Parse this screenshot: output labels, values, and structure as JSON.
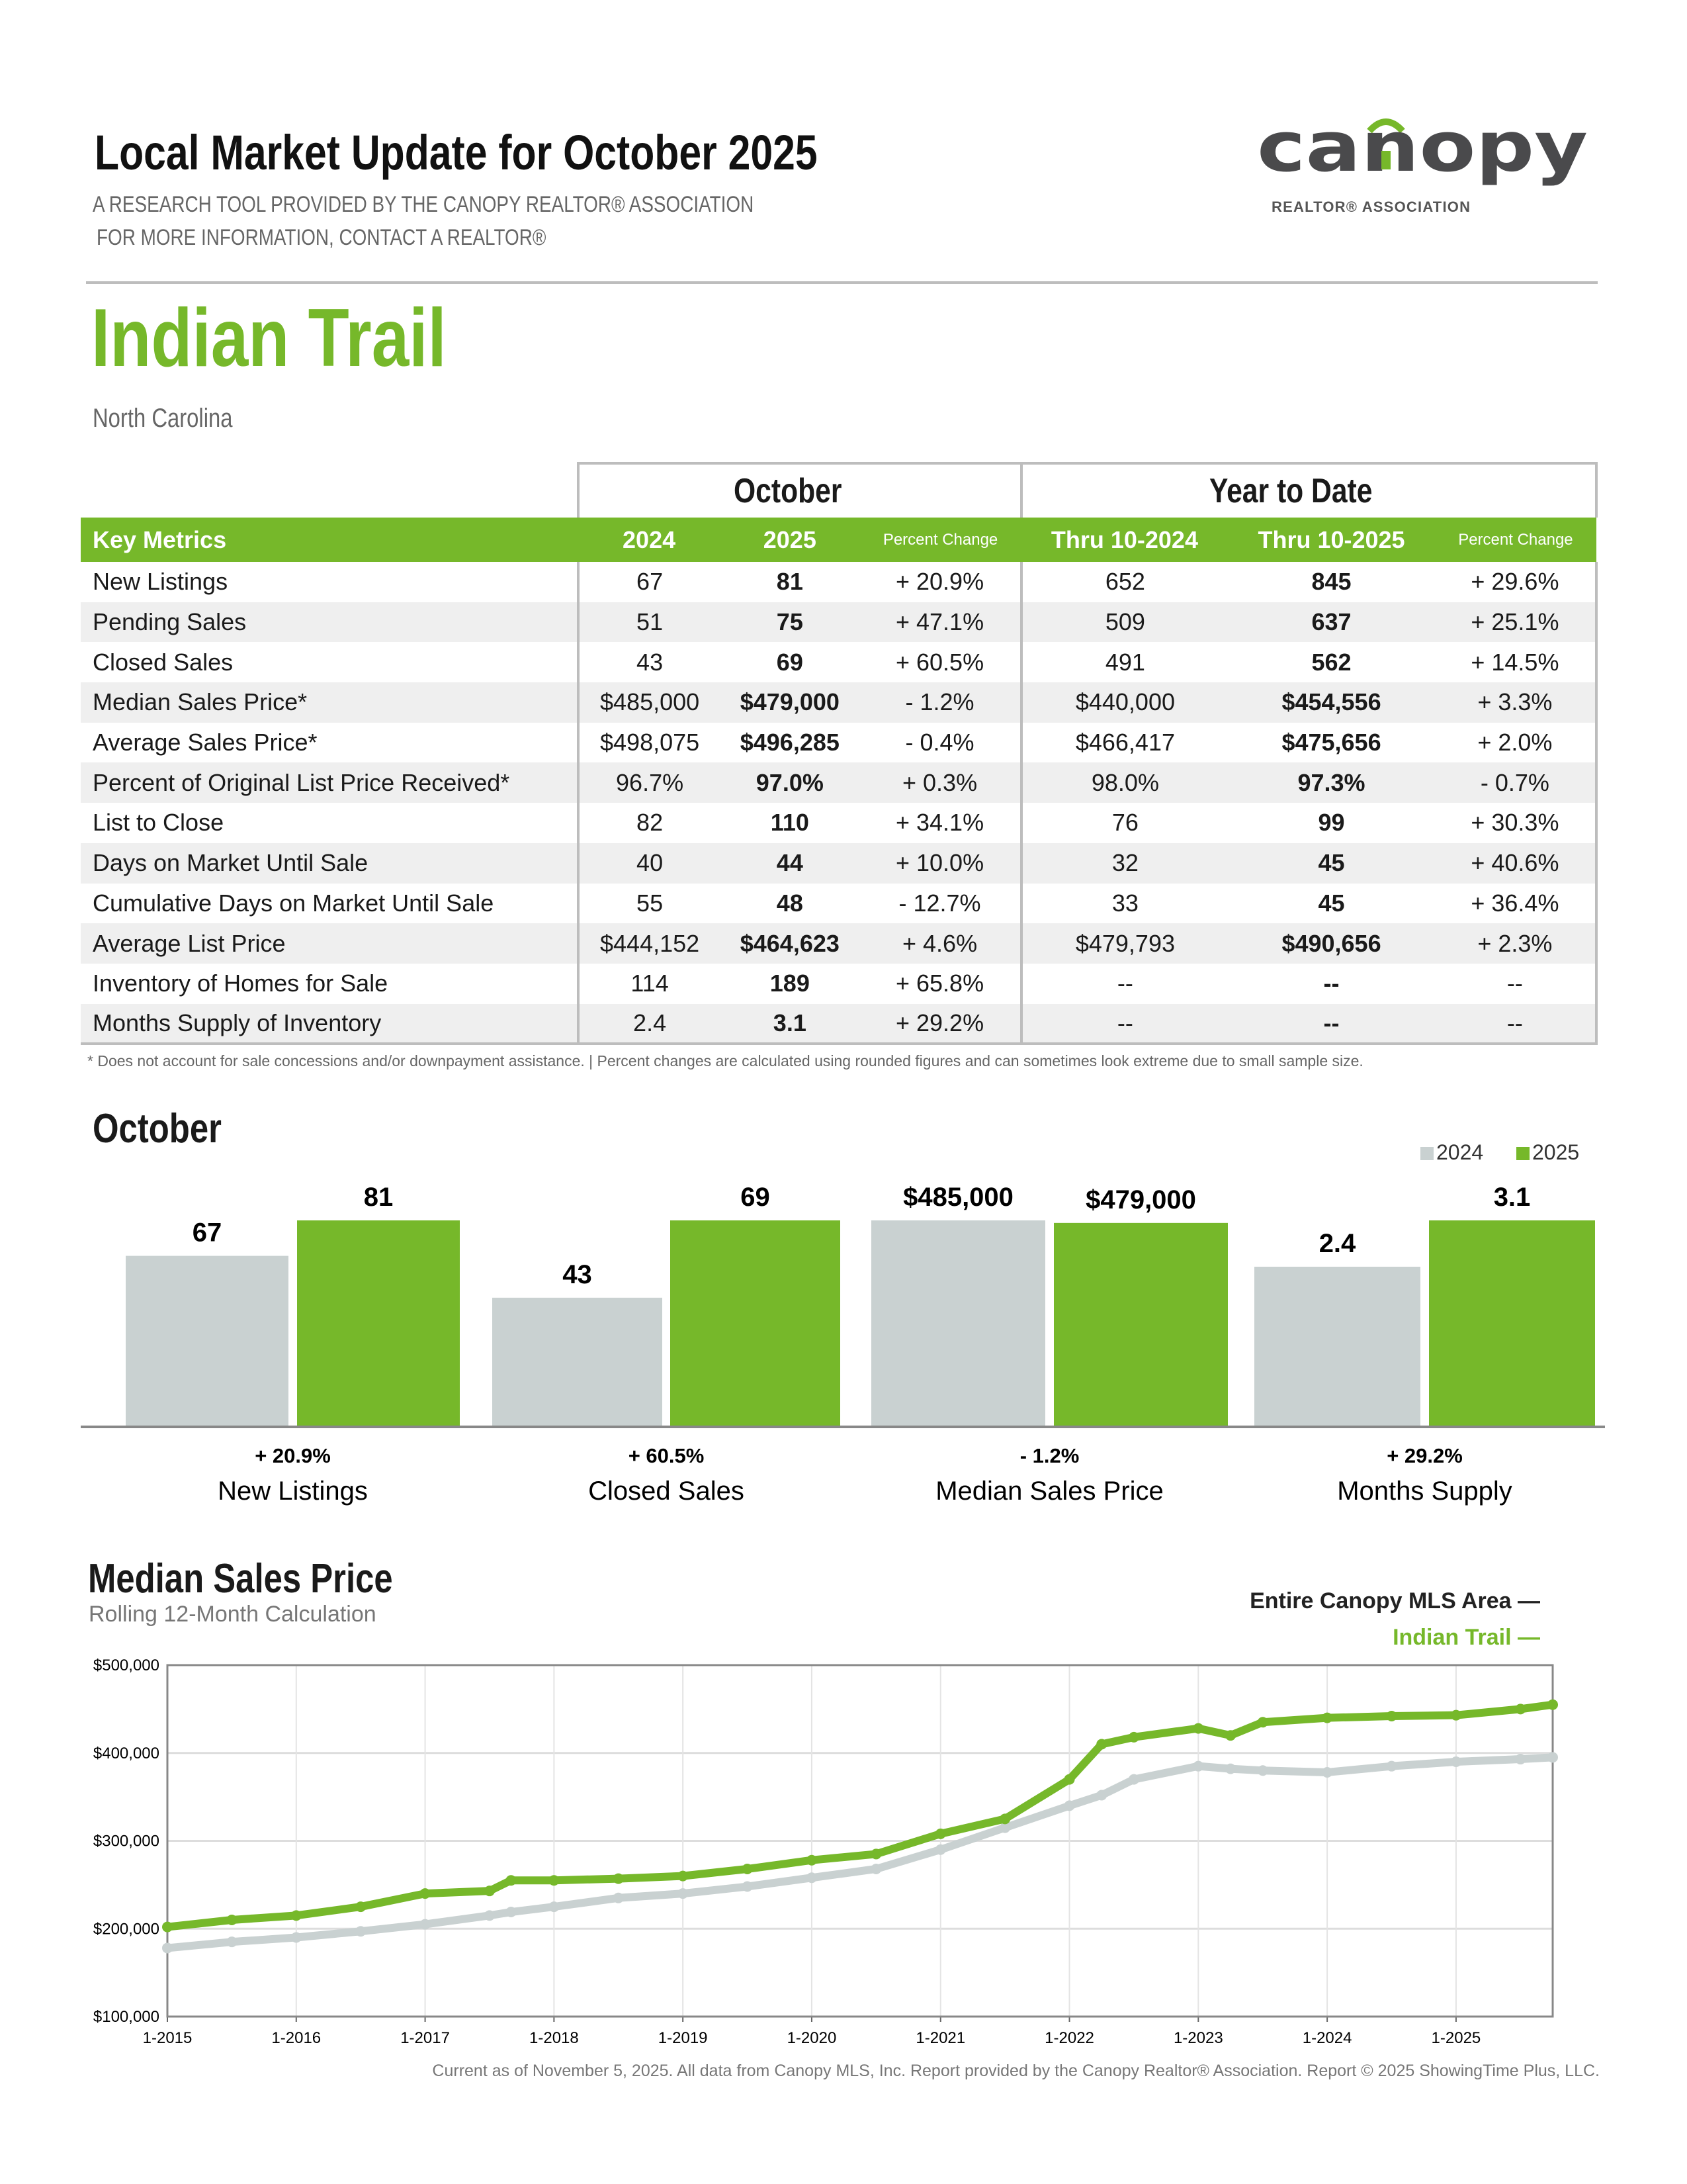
{
  "header": {
    "title": "Local Market Update for October 2025",
    "subtitle1": "A RESEARCH TOOL PROVIDED BY THE CANOPY REALTOR® ASSOCIATION",
    "subtitle2": "FOR MORE INFORMATION, CONTACT A REALTOR®",
    "logo_text": "canopy",
    "logo_subtext": "REALTOR® ASSOCIATION"
  },
  "location": {
    "city": "Indian Trail",
    "state": "North Carolina"
  },
  "table": {
    "group1": "October",
    "group2": "Year to Date",
    "headers": [
      "Key Metrics",
      "2024",
      "2025",
      "Percent Change",
      "Thru 10-2024",
      "Thru 10-2025",
      "Percent Change"
    ],
    "rows": [
      [
        "New Listings",
        "67",
        "81",
        "+ 20.9%",
        "652",
        "845",
        "+ 29.6%"
      ],
      [
        "Pending Sales",
        "51",
        "75",
        "+ 47.1%",
        "509",
        "637",
        "+ 25.1%"
      ],
      [
        "Closed Sales",
        "43",
        "69",
        "+ 60.5%",
        "491",
        "562",
        "+ 14.5%"
      ],
      [
        "Median Sales Price*",
        "$485,000",
        "$479,000",
        "- 1.2%",
        "$440,000",
        "$454,556",
        "+ 3.3%"
      ],
      [
        "Average Sales Price*",
        "$498,075",
        "$496,285",
        "- 0.4%",
        "$466,417",
        "$475,656",
        "+ 2.0%"
      ],
      [
        "Percent of Original List Price Received*",
        "96.7%",
        "97.0%",
        "+ 0.3%",
        "98.0%",
        "97.3%",
        "- 0.7%"
      ],
      [
        "List to Close",
        "82",
        "110",
        "+ 34.1%",
        "76",
        "99",
        "+ 30.3%"
      ],
      [
        "Days on Market Until Sale",
        "40",
        "44",
        "+ 10.0%",
        "32",
        "45",
        "+ 40.6%"
      ],
      [
        "Cumulative Days on Market Until Sale",
        "55",
        "48",
        "- 12.7%",
        "33",
        "45",
        "+ 36.4%"
      ],
      [
        "Average List Price",
        "$444,152",
        "$464,623",
        "+ 4.6%",
        "$479,793",
        "$490,656",
        "+ 2.3%"
      ],
      [
        "Inventory of Homes for Sale",
        "114",
        "189",
        "+ 65.8%",
        "--",
        "--",
        "--"
      ],
      [
        "Months Supply of Inventory",
        "2.4",
        "3.1",
        "+ 29.2%",
        "--",
        "--",
        "--"
      ]
    ]
  },
  "footnote": "* Does not account for sale concessions and/or downpayment assistance.  |  Percent changes are calculated using rounded figures and can sometimes look extreme due to small sample size.",
  "colors": {
    "green": "#76b82a",
    "grey": "#c9d1d1"
  },
  "chart_data": [
    {
      "type": "bar",
      "title": "October",
      "legend": [
        "2024",
        "2025"
      ],
      "legend_position": "top-right",
      "groups": [
        {
          "label": "New Listings",
          "change": "+ 20.9%",
          "values": [
            67,
            81
          ],
          "labels": [
            "67",
            "81"
          ]
        },
        {
          "label": "Closed Sales",
          "change": "+ 60.5%",
          "values": [
            43,
            69
          ],
          "labels": [
            "43",
            "69"
          ]
        },
        {
          "label": "Median Sales Price",
          "change": "- 1.2%",
          "values": [
            485000,
            479000
          ],
          "labels": [
            "$485,000",
            "$479,000"
          ]
        },
        {
          "label": "Months Supply",
          "change": "+ 29.2%",
          "values": [
            2.4,
            3.1
          ],
          "labels": [
            "2.4",
            "3.1"
          ]
        }
      ]
    },
    {
      "type": "line",
      "title": "Median Sales Price",
      "subtitle": "Rolling 12-Month Calculation",
      "ylim": [
        100000,
        500000
      ],
      "yticks": [
        "$100,000",
        "$200,000",
        "$300,000",
        "$400,000",
        "$500,000"
      ],
      "xticks": [
        "1-2015",
        "1-2016",
        "1-2017",
        "1-2018",
        "1-2019",
        "1-2020",
        "1-2021",
        "1-2022",
        "1-2023",
        "1-2024",
        "1-2025"
      ],
      "x": [
        "1-2015",
        "7-2015",
        "1-2016",
        "7-2016",
        "1-2017",
        "7-2017",
        "9-2017",
        "1-2018",
        "7-2018",
        "1-2019",
        "7-2019",
        "1-2020",
        "7-2020",
        "1-2021",
        "7-2021",
        "1-2022",
        "4-2022",
        "7-2022",
        "1-2023",
        "4-2023",
        "7-2023",
        "1-2024",
        "7-2024",
        "1-2025",
        "7-2025",
        "10-2025"
      ],
      "series": [
        {
          "name": "Entire Canopy MLS Area",
          "color": "#c9d1d1",
          "values": [
            178000,
            185000,
            190000,
            197000,
            205000,
            215000,
            219000,
            225000,
            235000,
            240000,
            248000,
            258000,
            268000,
            290000,
            315000,
            340000,
            352000,
            370000,
            385000,
            382000,
            380000,
            378000,
            385000,
            390000,
            393000,
            395000
          ]
        },
        {
          "name": "Indian Trail",
          "color": "#76b82a",
          "values": [
            202000,
            210000,
            215000,
            225000,
            240000,
            243000,
            255000,
            255000,
            257000,
            260000,
            268000,
            278000,
            285000,
            308000,
            325000,
            370000,
            410000,
            418000,
            428000,
            420000,
            435000,
            440000,
            442000,
            443000,
            450000,
            455000
          ]
        }
      ]
    }
  ],
  "footer": "Current as of November 5, 2025. All data from Canopy MLS, Inc. Report provided by the Canopy Realtor® Association. Report © 2025 ShowingTime Plus, LLC."
}
